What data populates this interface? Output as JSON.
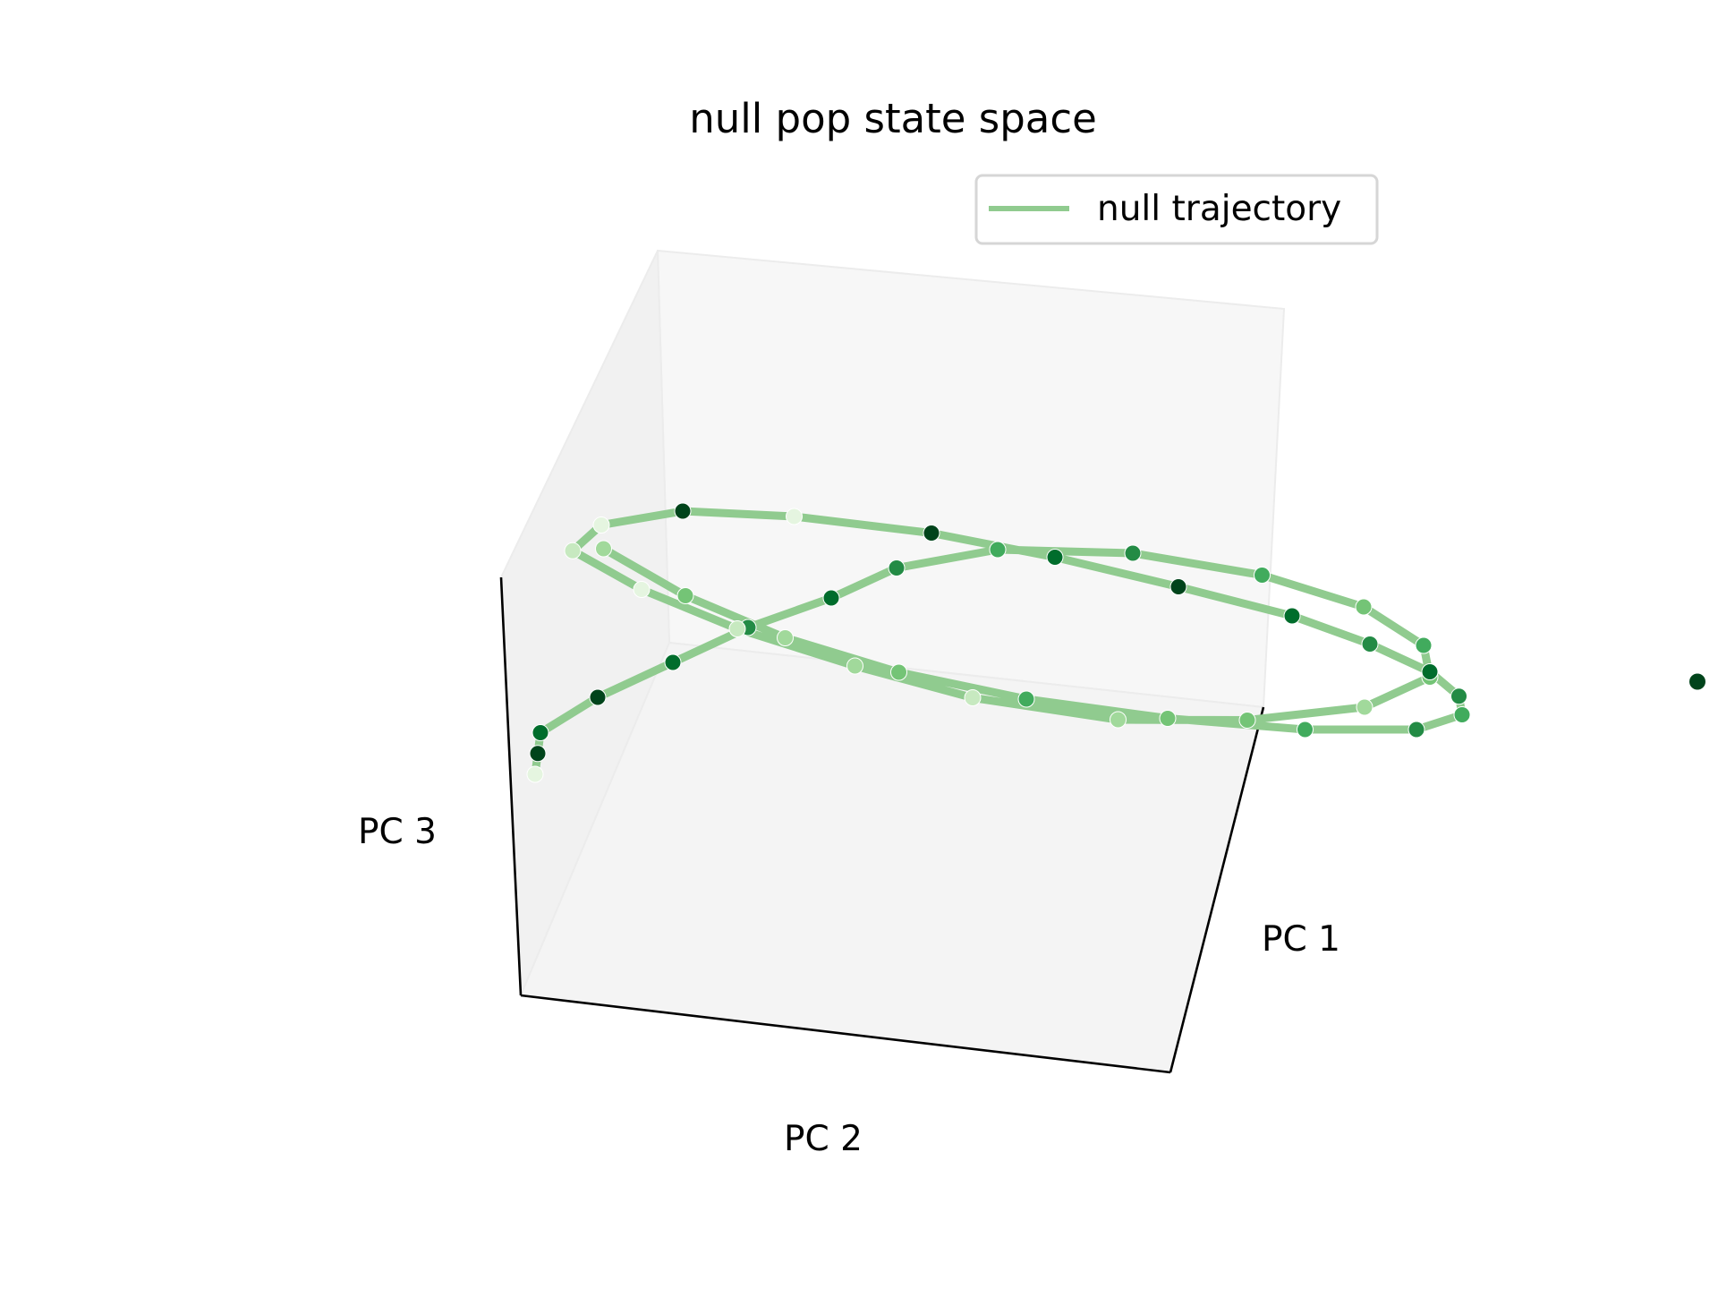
{
  "chart_data": {
    "type": "scatter",
    "projection": "3d",
    "title": "null pop state space",
    "xlabel": "PC 1",
    "ylabel": "PC 2",
    "zlabel": "PC 3",
    "grid": false,
    "legend": {
      "placement": "top-right",
      "entries": [
        "null trajectory"
      ]
    },
    "series": [
      {
        "name": "null trajectory",
        "marker_colormap": "Greens",
        "colors": {
          "line": "#90cb8f"
        },
        "note_units": "PC scores, axis ticks not printed",
        "x": [
          -3.0,
          -2.85,
          -2.7,
          -2.2,
          -1.6,
          -1.0,
          -0.4,
          0.1,
          0.8,
          1.6,
          2.3,
          2.8,
          3.0,
          2.9,
          2.4,
          1.7,
          1.0,
          0.3,
          -0.2,
          -0.7,
          -1.1,
          -1.35,
          -1.1,
          -0.6,
          0.0,
          0.7,
          1.3,
          1.9,
          2.4,
          2.7,
          2.9,
          2.95,
          2.9,
          2.6,
          2.0,
          1.3,
          0.6,
          0.0,
          -0.5,
          -0.9,
          -1.2
        ],
        "y": [
          -2.2,
          -1.9,
          -1.6,
          -1.2,
          -0.8,
          -0.4,
          -0.1,
          0.2,
          0.5,
          0.6,
          0.55,
          0.4,
          0.1,
          -0.2,
          -0.5,
          -0.6,
          -0.55,
          -0.3,
          0.05,
          0.4,
          0.7,
          1.0,
          1.2,
          1.3,
          1.25,
          1.1,
          0.9,
          0.7,
          0.4,
          0.1,
          -0.2,
          -0.45,
          -0.6,
          -0.7,
          -0.65,
          -0.5,
          -0.3,
          -0.05,
          0.25,
          0.6,
          0.95
        ],
        "z": [
          0.1,
          0.15,
          0.2,
          0.35,
          0.5,
          0.65,
          0.8,
          0.95,
          1.0,
          0.95,
          0.8,
          0.6,
          0.4,
          0.25,
          0.1,
          0.0,
          -0.05,
          0.0,
          0.1,
          0.25,
          0.45,
          0.65,
          0.8,
          0.9,
          0.9,
          0.85,
          0.75,
          0.6,
          0.5,
          0.4,
          0.3,
          0.2,
          0.1,
          0.0,
          -0.05,
          -0.05,
          0.0,
          0.1,
          0.25,
          0.45,
          0.7
        ],
        "outlier": {
          "x": 3.9,
          "y": -1.3,
          "z": 0.8
        }
      }
    ]
  }
}
